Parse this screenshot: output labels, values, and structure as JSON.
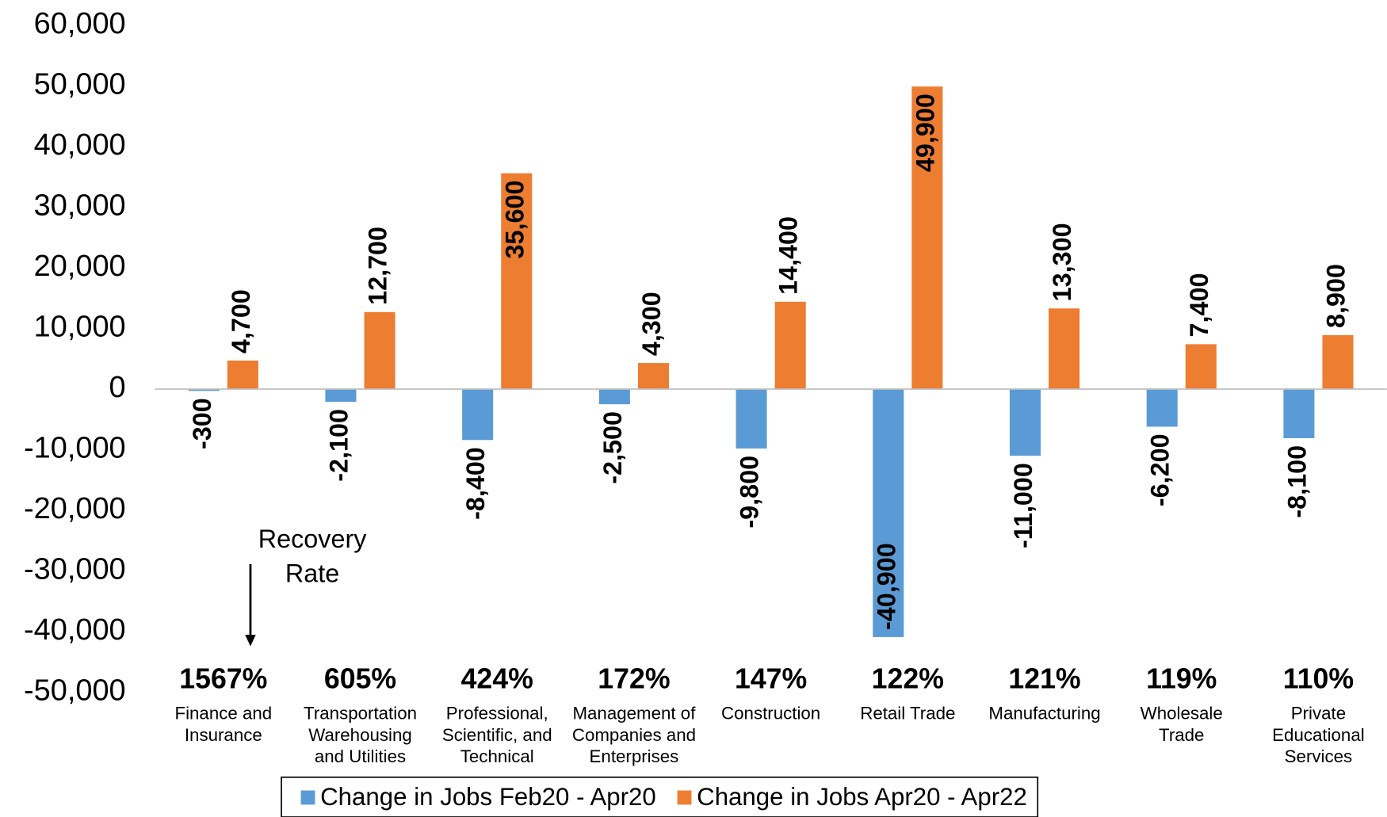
{
  "chart_data": {
    "type": "bar",
    "categories": [
      "Finance and\nInsurance",
      "Transportation\nWarehousing\nand Utilities",
      "Professional,\nScientific, and\nTechnical",
      "Management of\nCompanies and\nEnterprises",
      "Construction",
      "Retail Trade",
      "Manufacturing",
      "Wholesale\nTrade",
      "Private\nEducational\nServices"
    ],
    "series": [
      {
        "name": "Change in Jobs Feb20 - Apr20",
        "color": "#5b9bd5",
        "values": [
          -300,
          -2100,
          -8400,
          -2500,
          -9800,
          -40900,
          -11000,
          -6200,
          -8100
        ],
        "value_labels": [
          "-300",
          "-2,100",
          "-8,400",
          "-2,500",
          "-9,800",
          "-40,900",
          "-11,000",
          "-6,200",
          "-8,100"
        ]
      },
      {
        "name": "Change in Jobs Apr20 - Apr22",
        "color": "#ed7d31",
        "values": [
          4700,
          12700,
          35600,
          4300,
          14400,
          49900,
          13300,
          7400,
          8900
        ],
        "value_labels": [
          "4,700",
          "12,700",
          "35,600",
          "4,300",
          "14,400",
          "49,900",
          "13,300",
          "7,400",
          "8,900"
        ]
      }
    ],
    "recovery_rate_title": "Recovery Rate",
    "recovery_rates": [
      "1567%",
      "605%",
      "424%",
      "172%",
      "147%",
      "122%",
      "121%",
      "119%",
      "110%"
    ],
    "ylim": [
      -50000,
      60000
    ],
    "yticks": [
      {
        "value": -50000,
        "label": "-50,000"
      },
      {
        "value": -40000,
        "label": "-40,000"
      },
      {
        "value": -30000,
        "label": "-30,000"
      },
      {
        "value": -20000,
        "label": "-20,000"
      },
      {
        "value": -10000,
        "label": "-10,000"
      },
      0,
      {
        "value": 10000,
        "label": "10,000"
      },
      {
        "value": 20000,
        "label": "20,000"
      },
      {
        "value": 30000,
        "label": "30,000"
      },
      {
        "value": 40000,
        "label": "40,000"
      },
      {
        "value": 50000,
        "label": "50,000"
      },
      {
        "value": 60000,
        "label": "60,000"
      }
    ],
    "legend": "bottom"
  }
}
